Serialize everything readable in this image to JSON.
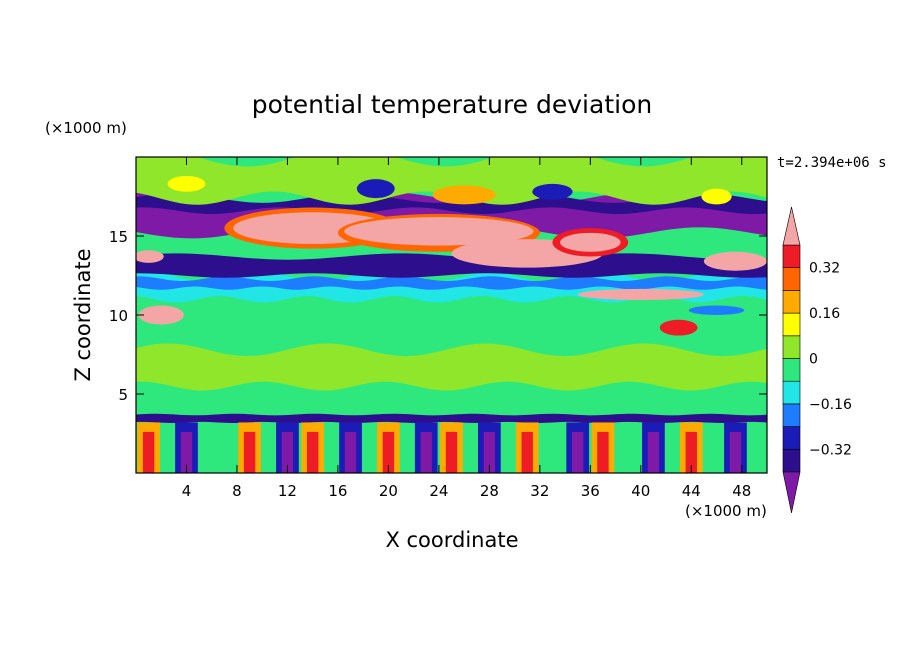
{
  "chart_data": {
    "type": "heatmap",
    "title": "potential temperature deviation",
    "xlabel": "X coordinate",
    "ylabel": "Z coordinate",
    "x_unit": "(×1000 m)",
    "y_unit": "(×1000 m)",
    "time_label": "t=2.394e+06 s",
    "xlim": [
      0,
      50
    ],
    "ylim": [
      0,
      20
    ],
    "x_ticks": [
      4,
      8,
      12,
      16,
      20,
      24,
      28,
      32,
      36,
      40,
      44,
      48
    ],
    "y_ticks": [
      5,
      10,
      15
    ],
    "colorbar": {
      "levels": [
        -0.4,
        -0.32,
        -0.24,
        -0.16,
        -0.08,
        0,
        0.08,
        0.16,
        0.24,
        0.32,
        0.4
      ],
      "tick_labels": [
        "0.32",
        "0.16",
        "0",
        "−0.16",
        "−0.32"
      ],
      "tick_values": [
        0.32,
        0.16,
        0,
        -0.16,
        -0.32
      ],
      "colors": [
        "#7f1aa6",
        "#2d0f8e",
        "#1b1bb8",
        "#1e7cff",
        "#22e6e6",
        "#2fe87d",
        "#8fe62a",
        "#ffff00",
        "#ffaa00",
        "#ff6600",
        "#ee1c24",
        "#f4a6a6"
      ]
    },
    "bands": [
      {
        "z_range": [
          0,
          3.5
        ],
        "description": "alternating warm/cold convective plumes"
      },
      {
        "z_range": [
          3.5,
          11
        ],
        "value": 0.02
      },
      {
        "z_range": [
          11,
          12.5
        ],
        "value": -0.1
      },
      {
        "z_range": [
          12.5,
          13.6
        ],
        "value": -0.36
      },
      {
        "z_range": [
          13.6,
          16
        ],
        "value": 0.42
      },
      {
        "z_range": [
          15.5,
          17.5
        ],
        "value": -0.38
      },
      {
        "z_range": [
          17.5,
          20
        ],
        "value": 0.0
      }
    ]
  }
}
